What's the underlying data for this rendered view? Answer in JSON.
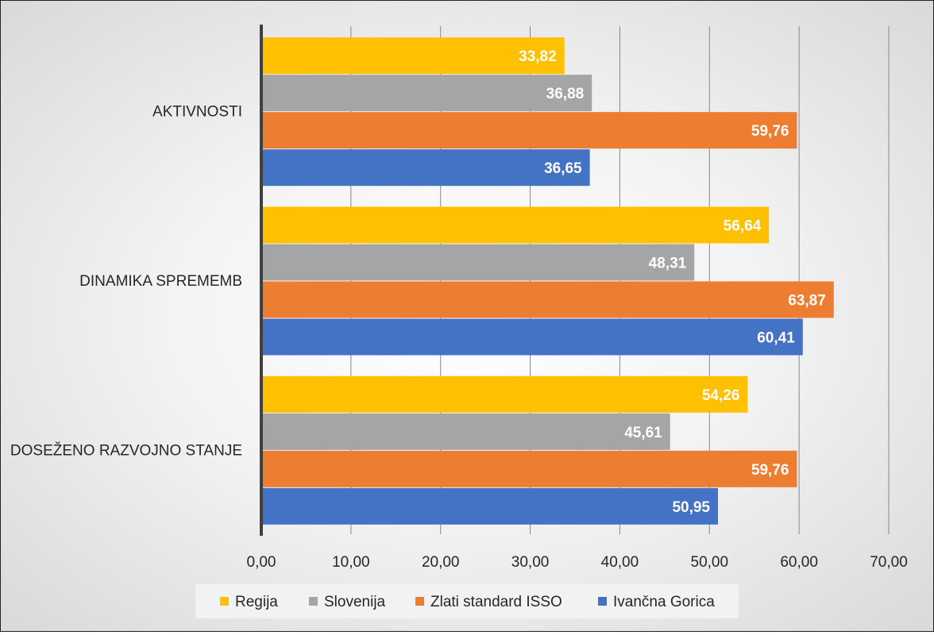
{
  "chart_data": {
    "type": "bar",
    "orientation": "horizontal",
    "title": "",
    "xlabel": "",
    "ylabel": "",
    "categories": [
      "AKTIVNOSTI",
      "DINAMIKA SPREMEMB",
      "DOSEŽENO RAZVOJNO STANJE"
    ],
    "series": [
      {
        "name": "Regija",
        "color": "#FFC000",
        "values": [
          33.82,
          56.64,
          54.26
        ],
        "labels": [
          "33,82",
          "56,64",
          "54,26"
        ]
      },
      {
        "name": "Slovenija",
        "color": "#A5A5A5",
        "values": [
          36.88,
          48.31,
          45.61
        ],
        "labels": [
          "36,88",
          "48,31",
          "45,61"
        ]
      },
      {
        "name": "Zlati standard ISSO",
        "color": "#ED7D31",
        "values": [
          59.76,
          63.87,
          59.76
        ],
        "labels": [
          "59,76",
          "63,87",
          "59,76"
        ]
      },
      {
        "name": "Ivančna Gorica",
        "color": "#4472C4",
        "values": [
          36.65,
          60.41,
          50.95
        ],
        "labels": [
          "36,65",
          "60,41",
          "50,95"
        ]
      }
    ],
    "xlim": [
      0,
      70
    ],
    "xticks": [
      0,
      10,
      20,
      30,
      40,
      50,
      60,
      70
    ],
    "xtick_labels": [
      "0,00",
      "10,00",
      "20,00",
      "30,00",
      "40,00",
      "50,00",
      "60,00",
      "70,00"
    ],
    "grid": "vertical",
    "legend_position": "bottom"
  }
}
